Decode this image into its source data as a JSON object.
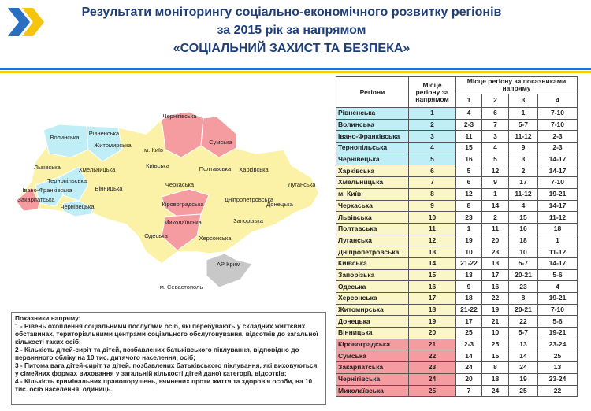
{
  "header": {
    "title_lines": [
      "Результати моніторингу соціально-економічного розвитку регіонів",
      "за 2015 рік за напрямом",
      "«СОЦІАЛЬНИЙ ЗАХИСТ ТА БЕЗПЕКА»"
    ]
  },
  "map": {
    "labels": [
      "Волинська",
      "Рівненська",
      "Чернігівська",
      "Сумська",
      "Житомирська",
      "м. Київ",
      "Львівська",
      "Хмельницька",
      "Київська",
      "Полтавська",
      "Харківська",
      "Тернопільська",
      "Вінницька",
      "Черкаська",
      "Луганська",
      "Івано-Франківська",
      "Закарпатська",
      "Чернівецька",
      "Кіровоградська",
      "Дніпропетровська",
      "Донецька",
      "Миколаївська",
      "Одеська",
      "Запорізька",
      "Херсонська",
      "АР Крим",
      "м. Севастополь"
    ]
  },
  "notes": {
    "title": "Показники напряму:",
    "items": [
      "1 - Рівень охоплення соціальними послугами осіб, які перебувають у складних життєвих обставинах, територіальними центрами соціального обслуговування, відсотків до загальної кількості таких осіб;",
      "2 - Кількість дітей-сиріт та дітей, позбавлених батьківського піклування, відповідно до первинного обліку на 10 тис. дитячого населення, осіб;",
      "3 - Питома вага дітей-сиріт та дітей, позбавлених батьківського піклування, які виховуються у сімейних формах виховання у загальній кількості дітей даної категорії, відсотків;",
      "4 - Кількість кримінальних правопорушень, вчинених проти життя та здоров'я особи, на 10 тис. осіб населення, одиниць."
    ]
  },
  "table": {
    "headers": [
      "Регіони",
      "Місце регіону за напрямом",
      "Місце регіону за показниками напряму"
    ],
    "subheaders": [
      "1",
      "2",
      "3",
      "4"
    ],
    "rows": [
      {
        "region": "Рівненська",
        "place": "1",
        "indicators": [
          "4",
          "6",
          "1",
          "7-10"
        ],
        "color": "#bfeef6"
      },
      {
        "region": "Волинська",
        "place": "2",
        "indicators": [
          "2-3",
          "7",
          "5-7",
          "7-10"
        ],
        "color": "#bfeef6"
      },
      {
        "region": "Івано-Франківська",
        "place": "3",
        "indicators": [
          "11",
          "3",
          "11-12",
          "2-3"
        ],
        "color": "#bfeef6"
      },
      {
        "region": "Тернопільська",
        "place": "4",
        "indicators": [
          "15",
          "4",
          "9",
          "2-3"
        ],
        "color": "#bfeef6"
      },
      {
        "region": "Чернівецька",
        "place": "5",
        "indicators": [
          "16",
          "5",
          "3",
          "14-17"
        ],
        "color": "#bfeef6"
      },
      {
        "region": "Харківська",
        "place": "6",
        "indicators": [
          "5",
          "12",
          "2",
          "14-17"
        ],
        "color": "#fbf6c8"
      },
      {
        "region": "Хмельницька",
        "place": "7",
        "indicators": [
          "6",
          "9",
          "17",
          "7-10"
        ],
        "color": "#fbf6c8"
      },
      {
        "region": "м. Київ",
        "place": "8",
        "indicators": [
          "12",
          "1",
          "11-12",
          "19-21"
        ],
        "color": "#fbf6c8"
      },
      {
        "region": "Черкаська",
        "place": "9",
        "indicators": [
          "8",
          "14",
          "4",
          "14-17"
        ],
        "color": "#fbf6c8"
      },
      {
        "region": "Львівська",
        "place": "10",
        "indicators": [
          "23",
          "2",
          "15",
          "11-12"
        ],
        "color": "#fbf6c8"
      },
      {
        "region": "Полтавська",
        "place": "11",
        "indicators": [
          "1",
          "11",
          "16",
          "18"
        ],
        "color": "#fbf6c8"
      },
      {
        "region": "Луганська",
        "place": "12",
        "indicators": [
          "19",
          "20",
          "18",
          "1"
        ],
        "color": "#fbf6c8"
      },
      {
        "region": "Дніпропетровська",
        "place": "13",
        "indicators": [
          "10",
          "23",
          "10",
          "11-12"
        ],
        "color": "#fbf6c8"
      },
      {
        "region": "Київська",
        "place": "14",
        "indicators": [
          "21-22",
          "13",
          "5-7",
          "14-17"
        ],
        "color": "#fbf6c8"
      },
      {
        "region": "Запорізька",
        "place": "15",
        "indicators": [
          "13",
          "17",
          "20-21",
          "5-6"
        ],
        "color": "#fbf6c8"
      },
      {
        "region": "Одеська",
        "place": "16",
        "indicators": [
          "9",
          "16",
          "23",
          "4"
        ],
        "color": "#fbf6c8"
      },
      {
        "region": "Херсонська",
        "place": "17",
        "indicators": [
          "18",
          "22",
          "8",
          "19-21"
        ],
        "color": "#fbf6c8"
      },
      {
        "region": "Житомирська",
        "place": "18",
        "indicators": [
          "21-22",
          "19",
          "20-21",
          "7-10"
        ],
        "color": "#fbf6c8"
      },
      {
        "region": "Донецька",
        "place": "19",
        "indicators": [
          "17",
          "21",
          "22",
          "5-6"
        ],
        "color": "#fbf6c8"
      },
      {
        "region": "Вінницька",
        "place": "20",
        "indicators": [
          "25",
          "10",
          "5-7",
          "19-21"
        ],
        "color": "#fbf6c8"
      },
      {
        "region": "Кіровоградська",
        "place": "21",
        "indicators": [
          "2-3",
          "25",
          "13",
          "23-24"
        ],
        "color": "#f49ca0"
      },
      {
        "region": "Сумська",
        "place": "22",
        "indicators": [
          "14",
          "15",
          "14",
          "25"
        ],
        "color": "#f49ca0"
      },
      {
        "region": "Закарпатська",
        "place": "23",
        "indicators": [
          "24",
          "8",
          "24",
          "13"
        ],
        "color": "#f49ca0"
      },
      {
        "region": "Чернігівська",
        "place": "24",
        "indicators": [
          "20",
          "18",
          "19",
          "23-24"
        ],
        "color": "#f49ca0"
      },
      {
        "region": "Миколаївська",
        "place": "25",
        "indicators": [
          "7",
          "24",
          "25",
          "22"
        ],
        "color": "#f49ca0"
      }
    ]
  }
}
